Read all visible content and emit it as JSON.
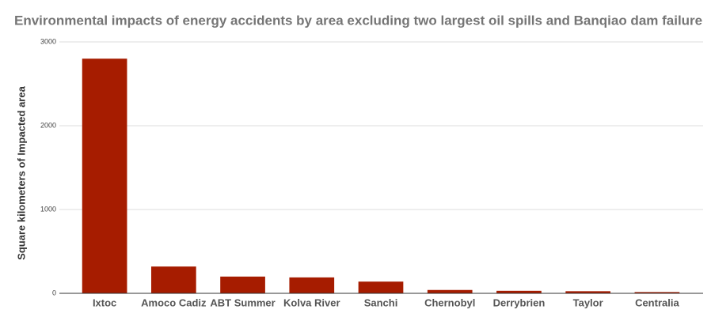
{
  "chart_data": {
    "type": "bar",
    "title": "Environmental impacts of energy accidents by area excluding two largest oil spills and Banqiao dam failure",
    "y_label": "Square kilometers of Impacted area",
    "categories": [
      "Ixtoc",
      "Amoco Cadiz",
      "ABT Summer",
      "Kolva River",
      "Sanchi",
      "Chernobyl",
      "Derrybrien",
      "Taylor",
      "Centralia"
    ],
    "values": [
      2800,
      320,
      200,
      190,
      140,
      40,
      30,
      25,
      15
    ],
    "color": "#a61c00",
    "ylim": [
      0,
      3000
    ],
    "yticks": [
      0,
      1000,
      2000,
      3000
    ],
    "grid": true
  }
}
